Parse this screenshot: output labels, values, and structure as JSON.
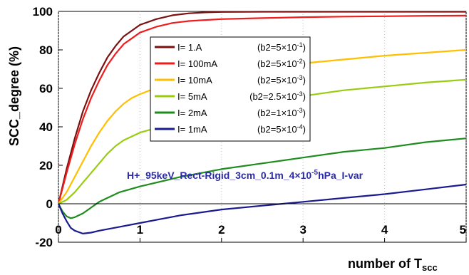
{
  "chart_data": {
    "type": "line",
    "xlabel": "number of T",
    "xlabel_sub": "scc",
    "ylabel": "SCC_degree (%)",
    "xlim": [
      0,
      5
    ],
    "ylim": [
      -20,
      100
    ],
    "x_ticks": [
      "0",
      "1",
      "2",
      "3",
      "4",
      "5"
    ],
    "y_ticks": [
      "-20",
      "0",
      "20",
      "40",
      "60",
      "80",
      "100"
    ],
    "grid": "vertical dotted lines at integer x",
    "legend_position": "top-center",
    "annotation": {
      "text": "H+_95keV_Rect-Rigid_3cm_0.1m_4×10",
      "sup": "-5",
      "tail": "hPa_I-var"
    },
    "series": [
      {
        "name": "I= 1.A",
        "b2": "(b2=5×10",
        "b2_exp": "-1",
        "color": "#7a1010",
        "x": [
          0,
          0.1,
          0.2,
          0.3,
          0.4,
          0.5,
          0.6,
          0.7,
          0.8,
          0.9,
          1.0,
          1.2,
          1.4,
          1.6,
          1.8,
          2.0,
          2.5,
          3.0,
          3.5,
          4.0,
          4.5,
          5.0
        ],
        "values": [
          0,
          18,
          34,
          48,
          59,
          68,
          76,
          82,
          87,
          90,
          93,
          96,
          98,
          99,
          99.5,
          99.7,
          99.8,
          99.8,
          99.8,
          99.8,
          99.8,
          99.8
        ]
      },
      {
        "name": "I= 100mA",
        "b2": "(b2=5×10",
        "b2_exp": "-2",
        "color": "#ee1c1c",
        "x": [
          0,
          0.1,
          0.2,
          0.3,
          0.4,
          0.5,
          0.6,
          0.7,
          0.8,
          0.9,
          1.0,
          1.2,
          1.4,
          1.6,
          1.8,
          2.0,
          2.5,
          3.0,
          3.5,
          4.0,
          4.5,
          5.0
        ],
        "values": [
          0,
          16,
          31,
          44,
          55,
          64,
          72,
          78,
          83,
          86,
          89,
          92,
          94,
          95,
          95.5,
          96,
          96.5,
          97,
          97.3,
          97.5,
          97.7,
          97.8
        ]
      },
      {
        "name": "I= 10mA",
        "b2": "(b2=5×10",
        "b2_exp": "-3",
        "color": "#ffbf00",
        "x": [
          0,
          0.1,
          0.2,
          0.3,
          0.4,
          0.5,
          0.6,
          0.7,
          0.8,
          0.9,
          1.0,
          1.25,
          1.5,
          2.0,
          2.5,
          3.0,
          3.5,
          4.0,
          4.5,
          5.0
        ],
        "values": [
          0,
          6,
          14,
          22,
          30,
          37,
          43,
          48,
          52,
          55,
          57,
          61,
          64,
          68,
          71,
          73,
          75,
          77,
          78.5,
          80
        ]
      },
      {
        "name": "I= 5mA",
        "b2": "(b2=2.5×10",
        "b2_exp": "-3",
        "color": "#99cc11",
        "x": [
          0,
          0.1,
          0.2,
          0.3,
          0.4,
          0.5,
          0.6,
          0.7,
          0.8,
          0.9,
          1.0,
          1.25,
          1.5,
          2.0,
          2.5,
          3.0,
          3.5,
          4.0,
          4.5,
          5.0
        ],
        "values": [
          0,
          2,
          6,
          11,
          16,
          21,
          26,
          30,
          33,
          35,
          37,
          40,
          43,
          49,
          53,
          56,
          59,
          61,
          63,
          64.5
        ]
      },
      {
        "name": "I= 2mA",
        "b2": "(b2=1×10",
        "b2_exp": "-3",
        "color": "#1e8c1e",
        "x": [
          0,
          0.05,
          0.1,
          0.15,
          0.2,
          0.3,
          0.4,
          0.5,
          0.75,
          1.0,
          1.5,
          2.0,
          2.5,
          3.0,
          3.5,
          4.0,
          4.5,
          5.0
        ],
        "values": [
          0,
          -4,
          -6.5,
          -7.5,
          -7,
          -5,
          -2,
          1,
          6,
          9,
          14,
          18,
          21,
          24,
          27,
          29,
          32,
          34
        ]
      },
      {
        "name": "I= 1mA",
        "b2": "(b2=5×10",
        "b2_exp": "-4",
        "color": "#1b1b90",
        "x": [
          0,
          0.05,
          0.1,
          0.15,
          0.2,
          0.3,
          0.4,
          0.5,
          0.75,
          1.0,
          1.25,
          1.5,
          2.0,
          2.5,
          3.0,
          3.5,
          4.0,
          4.5,
          5.0
        ],
        "values": [
          0,
          -5,
          -9,
          -12.5,
          -14,
          -15.5,
          -15,
          -14,
          -12,
          -10,
          -8,
          -6,
          -3,
          -1,
          1,
          3,
          5,
          7.5,
          10
        ]
      }
    ]
  }
}
